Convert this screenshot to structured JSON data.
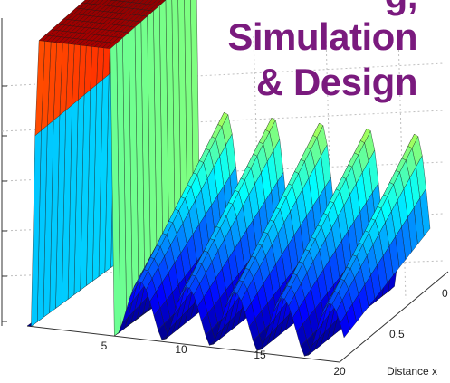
{
  "header": {
    "title_lines": [
      "g,",
      "Simulation",
      "& Design"
    ]
  },
  "chart_data": {
    "type": "surface",
    "title": "",
    "xlabel": "Distance x",
    "ylabel": "",
    "zlabel": "",
    "x_ticks": [
      "5",
      "10",
      "15",
      "20"
    ],
    "y_ticks": [
      "0",
      "0.5"
    ],
    "xlim": [
      0,
      20
    ],
    "grid": true,
    "colormap": "jet",
    "ridge_count": 6,
    "description_values": {
      "initial_wall_height": 1.0,
      "ridge_peak_height": 0.55
    }
  },
  "colors": {
    "title": "#7a1a7e",
    "grid": "#bfbfbf",
    "edge": "#1a1a1a"
  }
}
